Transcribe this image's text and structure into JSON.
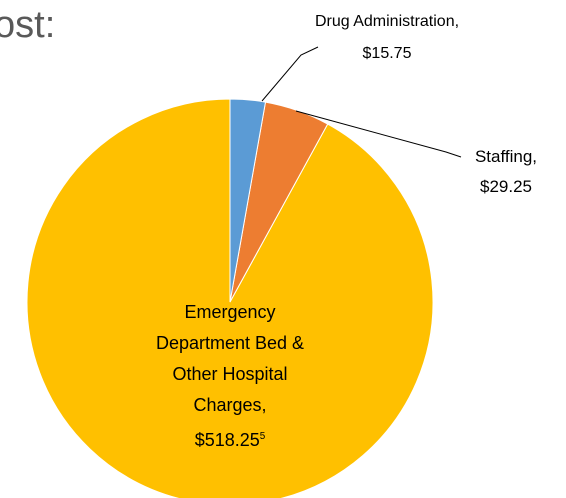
{
  "chart_data": {
    "type": "pie",
    "title": "ost:",
    "categories": [
      "Drug Administration,",
      "Staffing,",
      "Emergency Department Bed & Other Hospital Charges,"
    ],
    "values": [
      15.75,
      29.25,
      518.25
    ],
    "value_labels": [
      "$15.75",
      "$29.25",
      "$518.25"
    ],
    "colors": [
      "#5b9bd5",
      "#ed7d31",
      "#ffc000"
    ],
    "footnote": "5"
  }
}
